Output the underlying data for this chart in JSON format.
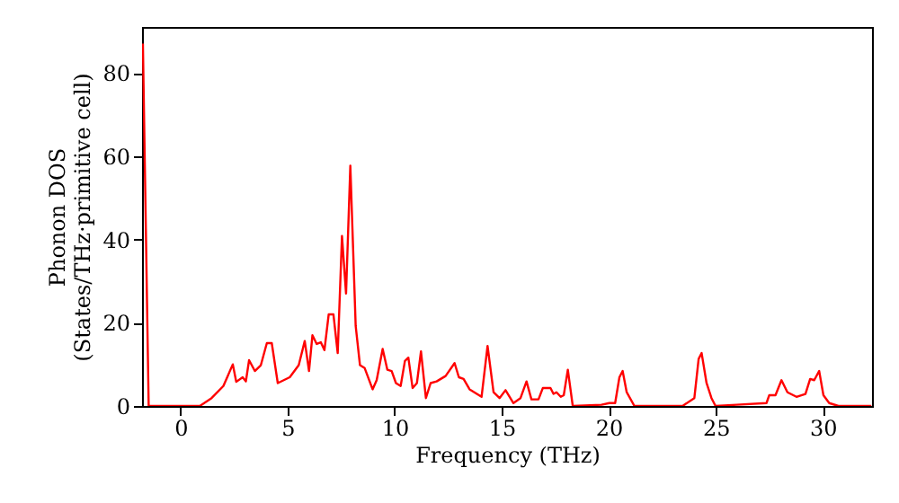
{
  "chart_data": {
    "type": "line",
    "xlabel": "Frequency (THz)",
    "ylabel": "Phonon DOS\n(States/THz·primitive cell)",
    "xlim": [
      -1.8,
      32.3
    ],
    "ylim": [
      0,
      91
    ],
    "xticks": [
      0,
      5,
      10,
      15,
      20,
      25,
      30
    ],
    "yticks": [
      0,
      20,
      40,
      60,
      80
    ],
    "grid": false,
    "marker": "none",
    "line_style": "solid",
    "series": [
      {
        "color": "#ff0000",
        "x": [
          -1.76,
          -1.49,
          0.9,
          1.45,
          2.0,
          2.44,
          2.6,
          2.9,
          3.05,
          3.2,
          3.47,
          3.75,
          4.03,
          4.26,
          4.54,
          5.1,
          5.52,
          5.8,
          6.0,
          6.16,
          6.36,
          6.55,
          6.72,
          6.92,
          7.14,
          7.34,
          7.54,
          7.73,
          7.93,
          8.18,
          8.38,
          8.6,
          8.97,
          9.16,
          9.44,
          9.66,
          9.86,
          10.06,
          10.28,
          10.48,
          10.64,
          10.84,
          11.04,
          11.23,
          11.46,
          11.68,
          11.96,
          12.38,
          12.8,
          13.0,
          13.22,
          13.5,
          14.06,
          14.34,
          14.62,
          14.9,
          15.18,
          15.55,
          15.88,
          16.16,
          16.39,
          16.72,
          16.92,
          17.28,
          17.42,
          17.56,
          17.76,
          17.9,
          18.09,
          18.32,
          19.66,
          20.03,
          20.3,
          20.5,
          20.65,
          20.84,
          21.2,
          23.45,
          24.0,
          24.2,
          24.34,
          24.57,
          24.8,
          24.99,
          25.97,
          27.37,
          27.5,
          27.79,
          28.07,
          28.35,
          28.77,
          29.19,
          29.41,
          29.6,
          29.83,
          30.03,
          30.3,
          30.73,
          32.27
        ],
        "values": [
          87,
          0,
          0,
          1.9,
          4.8,
          10,
          5.8,
          6.9,
          5.9,
          11,
          8.4,
          9.8,
          15.1,
          15.1,
          5.5,
          6.9,
          9.8,
          15.6,
          8.4,
          17,
          14.9,
          15.3,
          13.4,
          22,
          22,
          12.7,
          40.8,
          27,
          57.7,
          19.2,
          9.8,
          9.1,
          4.0,
          6.2,
          13.7,
          8.7,
          8.4,
          5.5,
          4.8,
          10.8,
          11.6,
          4.3,
          5.5,
          13.1,
          1.9,
          5.5,
          5.9,
          7.2,
          10.3,
          6.9,
          6.5,
          4.0,
          2.2,
          14.4,
          3.3,
          1.9,
          3.8,
          0.7,
          1.9,
          5.9,
          1.6,
          1.6,
          4.3,
          4.3,
          2.9,
          3.3,
          2.2,
          2.6,
          8.7,
          0,
          0.3,
          0.7,
          0.7,
          6.9,
          8.4,
          3.3,
          0,
          0,
          1.9,
          11.3,
          12.7,
          5.5,
          1.9,
          0,
          0.3,
          0.7,
          2.6,
          2.6,
          6.2,
          3.3,
          2.2,
          2.9,
          6.5,
          6.2,
          8.4,
          2.6,
          0.7,
          0,
          0
        ]
      }
    ]
  }
}
